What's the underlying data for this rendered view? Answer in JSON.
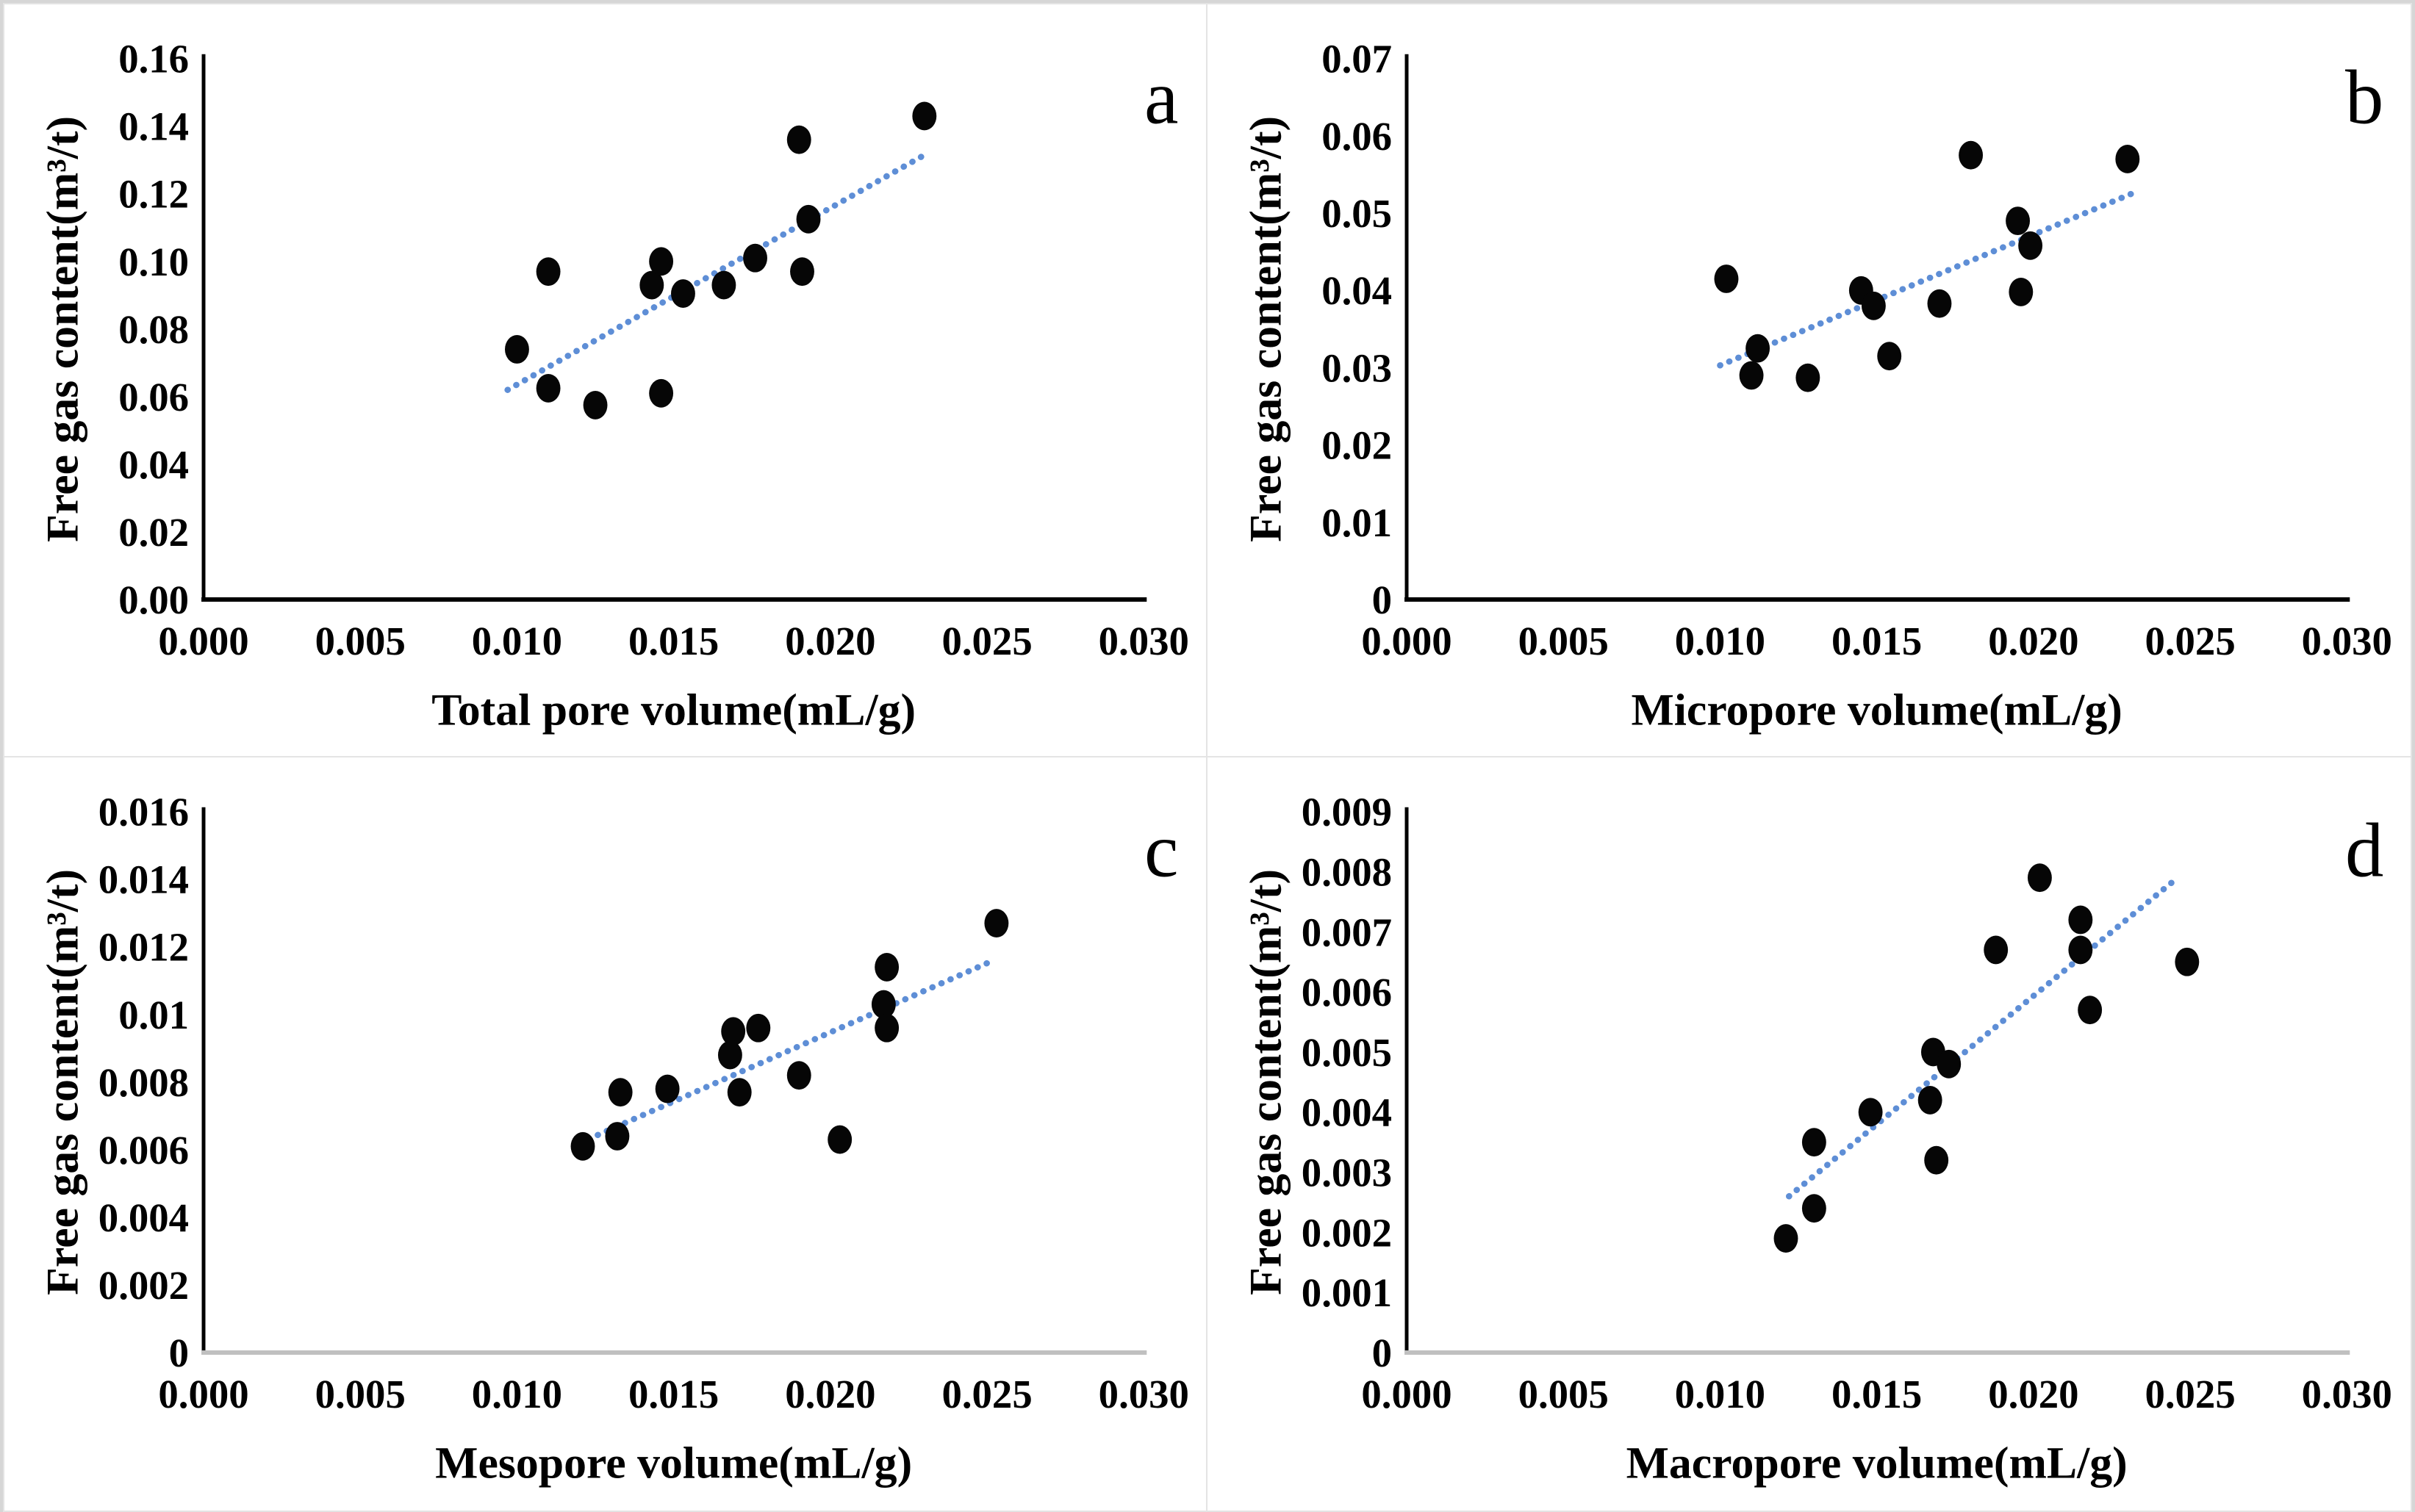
{
  "figure": {
    "background": "#ffffff",
    "outer_border_color": "#d6d6d6",
    "separator_color": "#e4e4e4",
    "point_color": "#060606",
    "trend_color": "#5E8ED6",
    "axis_color": "#000000",
    "gray_axis_color": "#c0c0c0"
  },
  "chart_data": [
    {
      "type": "scatter",
      "panel": "a",
      "xlabel": "Total pore volume(mL/g)",
      "ylabel": "Free gas content(m³/t)",
      "xlim": [
        0,
        0.03
      ],
      "ylim": [
        0,
        0.16
      ],
      "xtick_labels": [
        "0.000",
        "0.005",
        "0.010",
        "0.015",
        "0.020",
        "0.025",
        "0.030"
      ],
      "ytick_labels": [
        "0.00",
        "0.02",
        "0.04",
        "0.06",
        "0.08",
        "0.10",
        "0.12",
        "0.14",
        "0.16"
      ],
      "x_axis_color": "#000000",
      "legend": "none",
      "grid": "off",
      "points": [
        [
          0.01,
          0.074
        ],
        [
          0.011,
          0.097
        ],
        [
          0.011,
          0.0625
        ],
        [
          0.0125,
          0.0575
        ],
        [
          0.0143,
          0.093
        ],
        [
          0.0146,
          0.1
        ],
        [
          0.0146,
          0.061
        ],
        [
          0.0153,
          0.0905
        ],
        [
          0.0166,
          0.093
        ],
        [
          0.0176,
          0.101
        ],
        [
          0.019,
          0.136
        ],
        [
          0.0193,
          0.1125
        ],
        [
          0.0191,
          0.097
        ],
        [
          0.023,
          0.143
        ]
      ],
      "trendline": {
        "style": "dotted",
        "x1": 0.0097,
        "y1": 0.062,
        "x2": 0.0231,
        "y2": 0.132
      }
    },
    {
      "type": "scatter",
      "panel": "b",
      "xlabel": "Micropore volume(mL/g)",
      "ylabel": "Free gas content(m³/t)",
      "xlim": [
        0,
        0.03
      ],
      "ylim": [
        0,
        0.07
      ],
      "xtick_labels": [
        "0.000",
        "0.005",
        "0.010",
        "0.015",
        "0.020",
        "0.025",
        "0.030"
      ],
      "ytick_labels": [
        "0",
        "0.01",
        "0.02",
        "0.03",
        "0.04",
        "0.05",
        "0.06",
        "0.07"
      ],
      "x_axis_color": "#000000",
      "legend": "none",
      "grid": "off",
      "points": [
        [
          0.0102,
          0.0415
        ],
        [
          0.0112,
          0.0325
        ],
        [
          0.011,
          0.029
        ],
        [
          0.0128,
          0.0287
        ],
        [
          0.0145,
          0.04
        ],
        [
          0.0149,
          0.038
        ],
        [
          0.0154,
          0.0315
        ],
        [
          0.017,
          0.0383
        ],
        [
          0.018,
          0.0575
        ],
        [
          0.0195,
          0.049
        ],
        [
          0.0199,
          0.0458
        ],
        [
          0.0196,
          0.0398
        ],
        [
          0.023,
          0.057
        ]
      ],
      "trendline": {
        "style": "dotted",
        "x1": 0.01,
        "y1": 0.0303,
        "x2": 0.0233,
        "y2": 0.0528
      }
    },
    {
      "type": "scatter",
      "panel": "c",
      "xlabel": "Mesopore volume(mL/g)",
      "ylabel": "Free gas content(m³/t)",
      "xlim": [
        0,
        0.03
      ],
      "ylim": [
        0,
        0.016
      ],
      "xtick_labels": [
        "0.000",
        "0.005",
        "0.010",
        "0.015",
        "0.020",
        "0.025",
        "0.030"
      ],
      "ytick_labels": [
        "0",
        "0.002",
        "0.004",
        "0.006",
        "0.008",
        "0.01",
        "0.012",
        "0.014",
        "0.016"
      ],
      "x_axis_color": "#c0c0c0",
      "legend": "none",
      "grid": "off",
      "points": [
        [
          0.0121,
          0.0061
        ],
        [
          0.0132,
          0.0064
        ],
        [
          0.0133,
          0.0077
        ],
        [
          0.0148,
          0.0078
        ],
        [
          0.0168,
          0.0088
        ],
        [
          0.0169,
          0.0095
        ],
        [
          0.0177,
          0.0096
        ],
        [
          0.0171,
          0.0077
        ],
        [
          0.019,
          0.0082
        ],
        [
          0.0203,
          0.0063
        ],
        [
          0.0218,
          0.0114
        ],
        [
          0.0217,
          0.0103
        ],
        [
          0.0218,
          0.0096
        ],
        [
          0.0253,
          0.0127
        ]
      ],
      "trendline": {
        "style": "dotted",
        "x1": 0.012,
        "y1": 0.0062,
        "x2": 0.0252,
        "y2": 0.0116
      }
    },
    {
      "type": "scatter",
      "panel": "d",
      "xlabel": "Macropore volume(mL/g)",
      "ylabel": "Free gas content(m³/t)",
      "xlim": [
        0,
        0.03
      ],
      "ylim": [
        0,
        0.009
      ],
      "xtick_labels": [
        "0.000",
        "0.005",
        "0.010",
        "0.015",
        "0.020",
        "0.025",
        "0.030"
      ],
      "ytick_labels": [
        "0",
        "0.001",
        "0.002",
        "0.003",
        "0.004",
        "0.005",
        "0.006",
        "0.007",
        "0.008",
        "0.009"
      ],
      "x_axis_color": "#c0c0c0",
      "legend": "none",
      "grid": "off",
      "points": [
        [
          0.0121,
          0.0019
        ],
        [
          0.013,
          0.0024
        ],
        [
          0.013,
          0.0035
        ],
        [
          0.0148,
          0.004
        ],
        [
          0.0167,
          0.0042
        ],
        [
          0.0168,
          0.005
        ],
        [
          0.0173,
          0.0048
        ],
        [
          0.0169,
          0.0032
        ],
        [
          0.0188,
          0.0067
        ],
        [
          0.0202,
          0.0079
        ],
        [
          0.0215,
          0.0072
        ],
        [
          0.0215,
          0.0067
        ],
        [
          0.0218,
          0.0057
        ],
        [
          0.0249,
          0.0065
        ]
      ],
      "trendline": {
        "style": "dotted",
        "x1": 0.0122,
        "y1": 0.0026,
        "x2": 0.0246,
        "y2": 0.0079
      }
    }
  ]
}
